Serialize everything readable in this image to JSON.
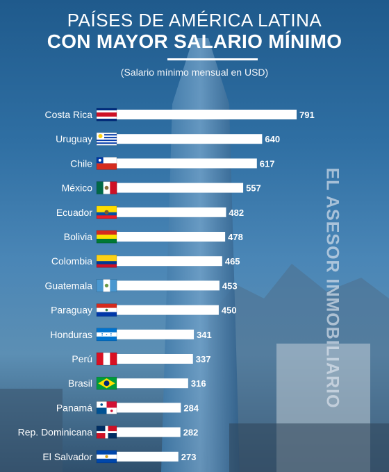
{
  "header": {
    "title_line1": "PAÍSES DE AMÉRICA LATINA",
    "title_line2": "CON MAYOR SALARIO MÍNIMO",
    "subtitle": "(Salario mínimo mensual en USD)"
  },
  "watermark": "EL ASESOR INMOBILIARIO",
  "colors": {
    "bar": "#ffffff",
    "text": "#ffffff"
  },
  "chart_data": {
    "type": "bar",
    "orientation": "horizontal",
    "title": "CON MAYOR SALARIO MÍNIMO",
    "subtitle": "(Salario mínimo mensual en USD)",
    "categories": [
      "Costa Rica",
      "Uruguay",
      "Chile",
      "México",
      "Ecuador",
      "Bolivia",
      "Colombia",
      "Guatemala",
      "Paraguay",
      "Honduras",
      "Perú",
      "Brasil",
      "Panamá",
      "Rep. Dominicana",
      "El Salvador"
    ],
    "values": [
      791,
      640,
      617,
      557,
      482,
      478,
      465,
      453,
      450,
      341,
      337,
      316,
      284,
      282,
      273
    ],
    "flags": [
      "costa-rica-flag-icon",
      "uruguay-flag-icon",
      "chile-flag-icon",
      "mexico-flag-icon",
      "ecuador-flag-icon",
      "bolivia-flag-icon",
      "colombia-flag-icon",
      "guatemala-flag-icon",
      "paraguay-flag-icon",
      "honduras-flag-icon",
      "peru-flag-icon",
      "brasil-flag-icon",
      "panama-flag-icon",
      "rep-dominicana-flag-icon",
      "el-salvador-flag-icon"
    ],
    "xlim": [
      0,
      791
    ],
    "grid": false,
    "legend": "none"
  }
}
